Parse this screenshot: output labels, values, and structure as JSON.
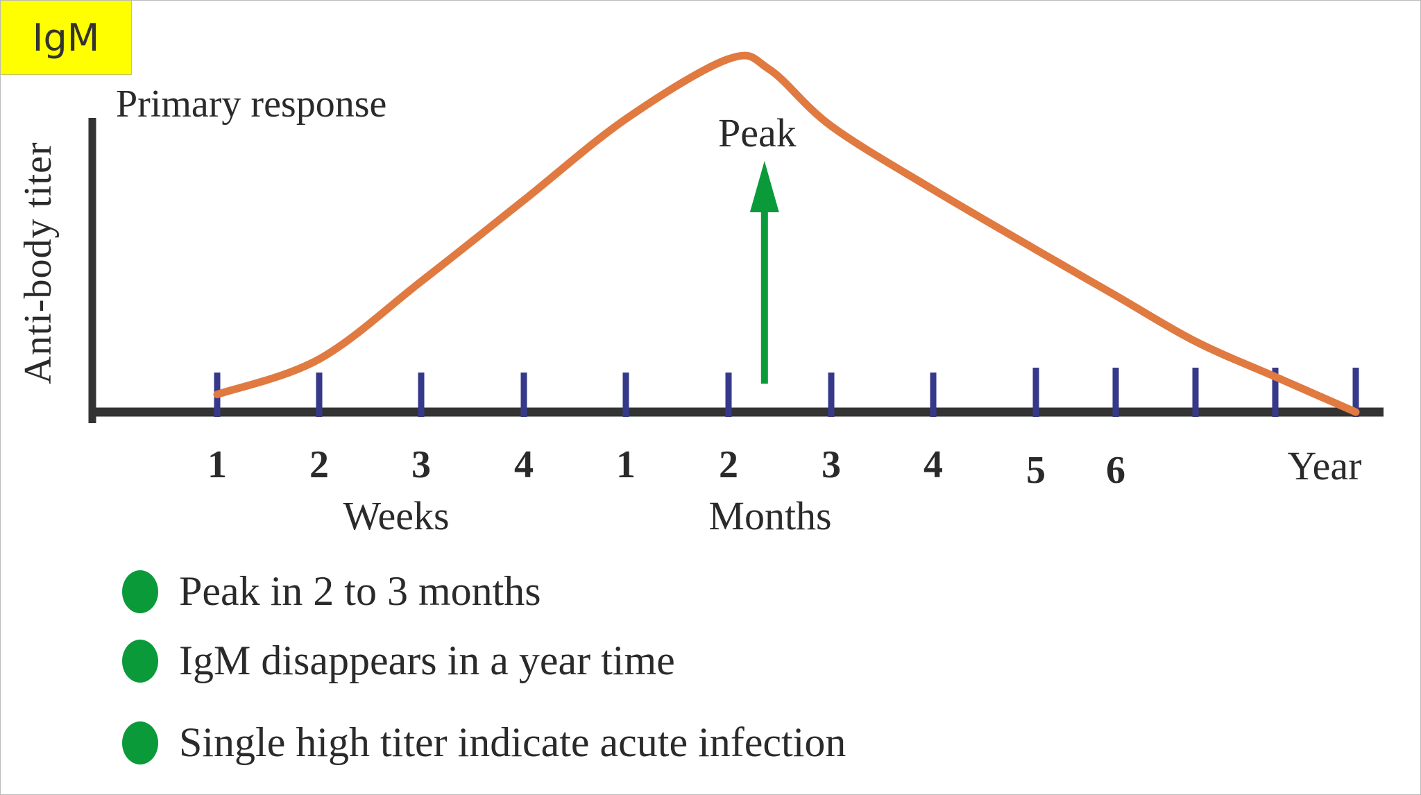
{
  "title": "Primary response",
  "ylabel": "Anti-body titer",
  "peak_label": "Peak",
  "badge": "IgM",
  "colors": {
    "curve": "#e07a40",
    "axis": "#333333",
    "ticks": "#36398a",
    "arrow": "#0a9a3a",
    "badge": "#ffff00",
    "bullet": "#0a9a3a"
  },
  "chart_data": {
    "type": "line",
    "title": "Primary response",
    "ylabel": "Anti-body titer",
    "tick_labels": [
      "1",
      "2",
      "3",
      "4",
      "1",
      "2",
      "3",
      "4",
      "5",
      "6",
      "",
      "",
      "Year"
    ],
    "group_labels": [
      "Weeks",
      "Months"
    ],
    "curve": {
      "x": [
        0,
        1,
        2,
        3,
        4,
        5,
        5.4,
        6,
        7,
        8,
        9,
        10,
        11,
        12
      ],
      "y": [
        0.05,
        0.15,
        0.37,
        0.6,
        0.83,
        1.0,
        0.97,
        0.81,
        0.63,
        0.46,
        0.33,
        0.2,
        0.1,
        0
      ]
    },
    "annotation": {
      "text": "Peak",
      "arrow_at_x": 5.35
    },
    "legend_box": "IgM"
  },
  "bullets": [
    "Peak in 2 to 3 months",
    "IgM disappears in a year time",
    "Single high titer  indicate acute infection"
  ]
}
